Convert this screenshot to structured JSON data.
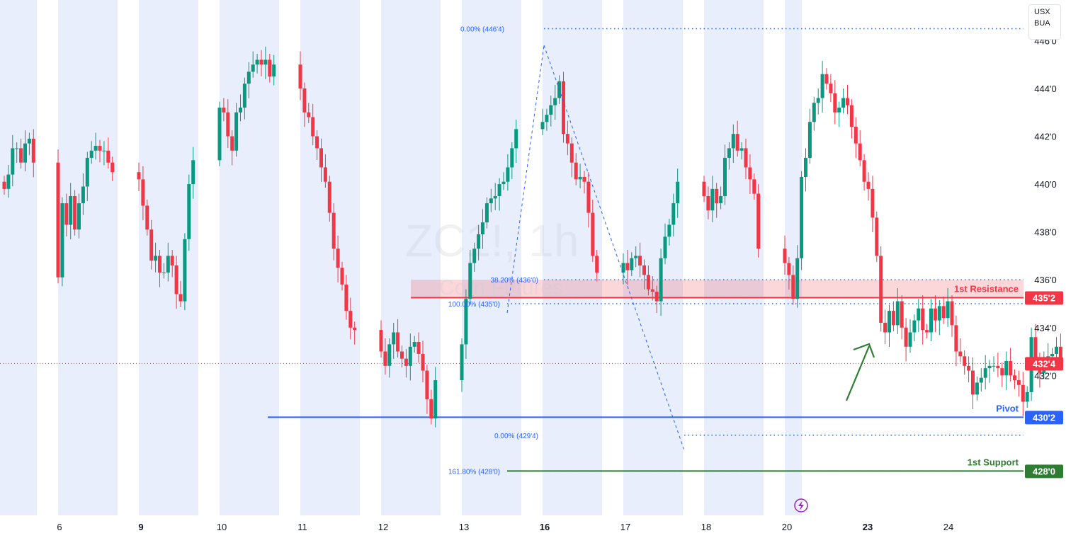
{
  "currency_box": {
    "line1": "USX",
    "line2": "BUA"
  },
  "watermark": {
    "symbol": "ZC1!, 1h",
    "description": "Corn Futures"
  },
  "levels": [
    {
      "name": "1st Resistance",
      "tag": "435'2",
      "value": 435.25,
      "color": "#f23645"
    },
    {
      "name": "Pivot",
      "tag": "430'2",
      "value": 430.25,
      "color": "#2962ff"
    },
    {
      "name": "1st Support",
      "tag": "428'0",
      "value": 428.0,
      "color": "#2e7d32"
    }
  ],
  "current_price": {
    "tag": "432'4",
    "value": 432.5,
    "color": "#f23645"
  },
  "fib_labels": [
    {
      "text": "0.00% (446'4)",
      "value": 446.5
    },
    {
      "text": "38.20% (436'0)",
      "value": 436.0
    },
    {
      "text": "100.00% (435'0)",
      "value": 435.0
    },
    {
      "text": "0.00% (429'4)",
      "value": 429.5
    },
    {
      "text": "161.80% (428'0)",
      "value": 428.0
    }
  ],
  "chart_data": {
    "type": "candlestick",
    "symbol": "ZC1!",
    "timeframe": "1h",
    "y_ticks": [
      "446'0",
      "444'0",
      "442'0",
      "440'0",
      "438'0",
      "436'0",
      "434'0",
      "432'0"
    ],
    "y_tick_values": [
      446,
      444,
      442,
      440,
      438,
      436,
      434,
      432
    ],
    "x_ticks": [
      "6",
      "9",
      "10",
      "11",
      "12",
      "13",
      "16",
      "17",
      "18",
      "20",
      "23",
      "24"
    ],
    "x_ticks_bold": [
      "9",
      "16",
      "23"
    ],
    "ylim": [
      425.2,
      447.7
    ],
    "grid": false,
    "colors": {
      "up": "#089981",
      "down": "#f23645",
      "session_shade": "#e8eefb"
    },
    "resistance_zone": [
      435.25,
      436.0
    ],
    "closes": [
      439.8,
      440.4,
      441.5,
      441.5,
      440.9,
      441.7,
      441.9,
      440.9,
      436.1,
      439.2,
      438.3,
      439.5,
      438.1,
      439.2,
      439.9,
      441.1,
      441.4,
      441.6,
      441.4,
      441.4,
      440.9,
      440.5,
      440.2,
      439.1,
      438.1,
      436.8,
      437.0,
      436.3,
      436.3,
      437.0,
      436.6,
      435.4,
      435.1,
      437.7,
      440.0,
      441.0,
      443.2,
      443.0,
      442.0,
      441.4,
      443.0,
      443.2,
      444.2,
      444.7,
      445.0,
      445.2,
      445.0,
      445.2,
      444.5,
      445.0,
      444.0,
      443.0,
      442.8,
      442.0,
      441.5,
      440.7,
      440.1,
      438.8,
      437.3,
      436.5,
      435.8,
      434.7,
      434.0,
      433.9,
      433.0,
      432.4,
      433.3,
      433.8,
      433.0,
      432.7,
      432.4,
      433.2,
      433.4,
      432.9,
      432.2,
      431.0,
      430.2,
      431.8,
      433.3,
      435.2,
      436.7,
      437.3,
      437.9,
      438.4,
      439.2,
      439.4,
      439.5,
      440.0,
      440.1,
      440.7,
      441.5,
      442.3,
      442.6,
      442.9,
      443.3,
      443.6,
      444.3,
      442.1,
      441.7,
      440.9,
      440.2,
      440.3,
      440.1,
      438.8,
      437.0,
      436.3,
      436.7,
      436.4,
      436.9,
      437.0,
      436.6,
      436.2,
      435.6,
      435.5,
      435.1,
      436.9,
      437.8,
      438.3,
      439.2,
      440.1,
      439.5,
      438.9,
      439.8,
      439.2,
      439.5,
      441.1,
      441.5,
      442.1,
      441.4,
      441.5,
      440.7,
      440.2,
      439.6,
      437.3,
      436.7,
      436.2,
      435.2,
      436.9,
      440.3,
      441.1,
      442.6,
      443.4,
      443.6,
      444.6,
      444.2,
      443.8,
      443.0,
      443.2,
      443.6,
      443.3,
      442.4,
      441.7,
      441.0,
      440.1,
      439.8,
      438.6,
      437.0,
      434.2,
      433.8,
      434.7,
      434.1,
      435.1,
      434.0,
      433.2,
      433.8,
      434.3,
      434.8,
      433.9,
      433.8,
      434.8,
      434.3,
      434.9,
      434.4,
      435.1,
      434.1,
      433.0,
      432.8,
      432.4,
      432.2,
      431.2,
      431.7,
      431.9,
      432.3,
      432.4,
      432.4,
      432.3,
      432.0,
      432.6,
      432.0,
      431.8,
      431.6,
      430.9,
      431.3,
      433.6,
      432.7,
      432.1,
      432.6,
      432.8,
      432.9,
      433.2,
      432.7
    ]
  }
}
